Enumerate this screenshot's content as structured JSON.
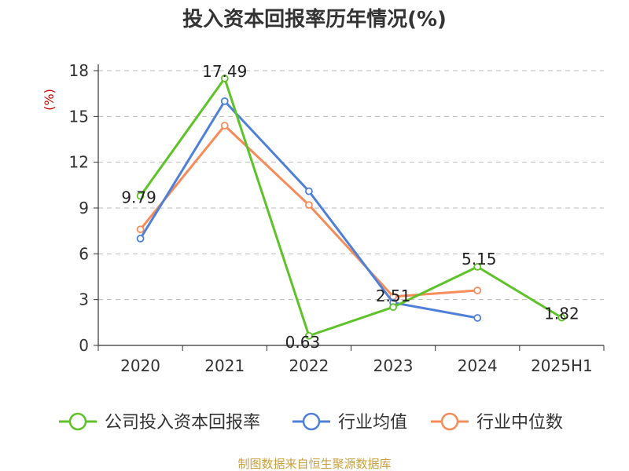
{
  "chart_data": {
    "type": "line",
    "title": "投入资本回报率历年情况(%)",
    "ylabel": "(%)",
    "xlabel": "",
    "categories": [
      "2020",
      "2021",
      "2022",
      "2023",
      "2024",
      "2025H1"
    ],
    "yticks": [
      "0",
      "3",
      "6",
      "9",
      "12",
      "15",
      "18"
    ],
    "ylim": [
      0,
      18
    ],
    "grid": true,
    "legend_position": "bottom",
    "series": [
      {
        "name": "公司投入资本回报率",
        "color": "#5ec229",
        "values": [
          9.79,
          17.49,
          0.63,
          2.51,
          5.15,
          1.82
        ],
        "labels": [
          "9.79",
          "17.49",
          "0.63",
          "2.51",
          "5.15",
          "1.82"
        ]
      },
      {
        "name": "行业均值",
        "color": "#4f80d9",
        "values": [
          7.0,
          16.0,
          10.1,
          2.8,
          1.8,
          null
        ]
      },
      {
        "name": "行业中位数",
        "color": "#f58c5a",
        "values": [
          7.6,
          14.4,
          9.2,
          3.2,
          3.6,
          null
        ]
      }
    ],
    "source": "制图数据来自恒生聚源数据库"
  }
}
